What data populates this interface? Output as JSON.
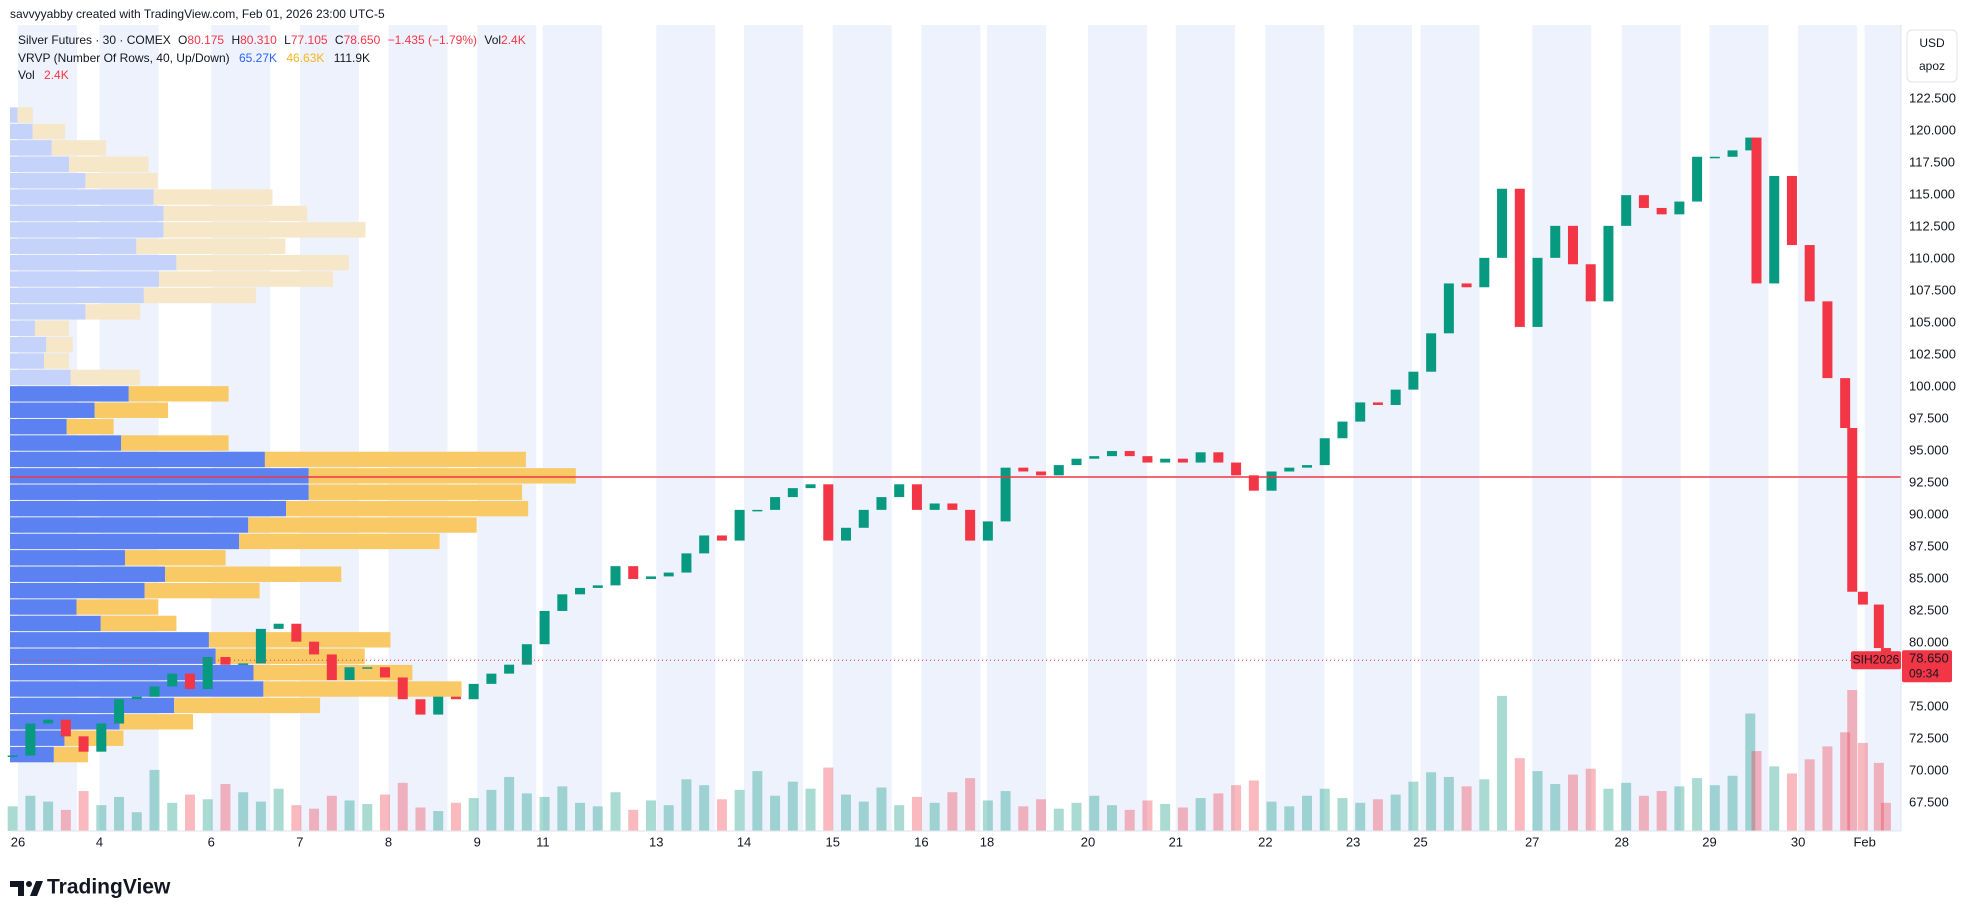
{
  "header": "savvyyabby created with TradingView.com, Feb 01, 2026 23:00 UTC-5",
  "legend": {
    "symbol": "Silver Futures · 30 · COMEX",
    "o_label": "O",
    "open": "80.175",
    "h_label": "H",
    "high": "80.310",
    "l_label": "L",
    "low": "77.105",
    "c_label": "C",
    "close": "78.650",
    "change": "−1.435 (−1.79%)",
    "vol_label": "Vol",
    "vol": "2.4K",
    "vrvp": "VRVP (Number Of Rows, 40, Up/Down)",
    "vrvp_up": "65.27K",
    "vrvp_down": "46.63K",
    "vrvp_total": "111.9K",
    "vol2_label": "Vol",
    "vol2": "2.4K"
  },
  "currency": "USD",
  "scale_mode": "apoz",
  "footer": "TradingView",
  "chart_data": {
    "type": "candlestick",
    "xlim": [
      0,
      21.33
    ],
    "ylim": [
      65.3,
      128.3
    ],
    "xticks": [
      {
        "value": 0.09,
        "label": "26"
      },
      {
        "value": 1.01,
        "label": "4"
      },
      {
        "value": 2.27,
        "label": "6"
      },
      {
        "value": 3.27,
        "label": "7"
      },
      {
        "value": 4.27,
        "label": "8"
      },
      {
        "value": 5.27,
        "label": "9"
      },
      {
        "value": 6.01,
        "label": "11"
      },
      {
        "value": 7.29,
        "label": "13"
      },
      {
        "value": 8.28,
        "label": "14"
      },
      {
        "value": 9.28,
        "label": "15"
      },
      {
        "value": 10.28,
        "label": "16"
      },
      {
        "value": 11.02,
        "label": "18"
      },
      {
        "value": 12.16,
        "label": "20"
      },
      {
        "value": 13.15,
        "label": "21"
      },
      {
        "value": 14.16,
        "label": "22"
      },
      {
        "value": 15.15,
        "label": "23"
      },
      {
        "value": 15.91,
        "label": "25"
      },
      {
        "value": 17.17,
        "label": "27"
      },
      {
        "value": 18.18,
        "label": "28"
      },
      {
        "value": 19.17,
        "label": "29"
      },
      {
        "value": 20.17,
        "label": "30"
      },
      {
        "value": 20.92,
        "label": "Feb"
      }
    ],
    "yticks": [
      {
        "value": 67.5,
        "label": "67.500"
      },
      {
        "value": 70,
        "label": "70.000"
      },
      {
        "value": 72.5,
        "label": "72.500"
      },
      {
        "value": 75,
        "label": "75.000"
      },
      {
        "value": 77.5,
        "label": "77.500"
      },
      {
        "value": 80,
        "label": "80.000"
      },
      {
        "value": 82.5,
        "label": "82.500"
      },
      {
        "value": 85,
        "label": "85.000"
      },
      {
        "value": 87.5,
        "label": "87.500"
      },
      {
        "value": 90,
        "label": "90.000"
      },
      {
        "value": 92.5,
        "label": "92.500"
      },
      {
        "value": 95,
        "label": "95.000"
      },
      {
        "value": 97.5,
        "label": "97.500"
      },
      {
        "value": 100,
        "label": "100.000"
      },
      {
        "value": 102.5,
        "label": "102.500"
      },
      {
        "value": 105,
        "label": "105.000"
      },
      {
        "value": 107.5,
        "label": "107.500"
      },
      {
        "value": 110,
        "label": "110.000"
      },
      {
        "value": 112.5,
        "label": "112.500"
      },
      {
        "value": 115,
        "label": "115.000"
      },
      {
        "value": 117.5,
        "label": "117.500"
      },
      {
        "value": 120,
        "label": "120.000"
      },
      {
        "value": 122.5,
        "label": "122.500"
      }
    ],
    "up_color": "#089981",
    "down_color": "#f23645",
    "x": [
      0.03,
      0.23,
      0.43,
      0.63,
      0.83,
      1.03,
      1.23,
      1.43,
      1.63,
      1.83,
      2.03,
      2.23,
      2.43,
      2.63,
      2.83,
      3.03,
      3.23,
      3.43,
      3.63,
      3.83,
      4.03,
      4.23,
      4.43,
      4.63,
      4.83,
      5.03,
      5.23,
      5.43,
      5.63,
      5.83,
      6.03,
      6.23,
      6.43,
      6.63,
      6.83,
      7.03,
      7.23,
      7.43,
      7.63,
      7.83,
      8.03,
      8.23,
      8.43,
      8.63,
      8.83,
      9.03,
      9.23,
      9.43,
      9.63,
      9.83,
      10.03,
      10.23,
      10.43,
      10.63,
      10.83,
      11.03,
      11.23,
      11.43,
      11.63,
      11.83,
      12.03,
      12.23,
      12.43,
      12.63,
      12.83,
      13.03,
      13.23,
      13.43,
      13.63,
      13.83,
      14.03,
      14.23,
      14.43,
      14.63,
      14.83,
      15.03,
      15.23,
      15.43,
      15.63,
      15.83,
      16.03,
      16.23,
      16.43,
      16.63,
      16.83,
      17.03,
      17.23,
      17.43,
      17.63,
      17.83,
      18.03,
      18.23,
      18.43,
      18.63,
      18.83,
      19.03,
      19.23,
      19.43,
      19.63,
      19.7,
      19.9,
      20.1,
      20.3,
      20.5,
      20.7,
      20.78,
      20.9,
      21.08,
      21.16
    ],
    "series": [
      {
        "name": "Silver Futures",
        "values": [
          71.2,
          73.7,
          74,
          72.7,
          71.5,
          73.7,
          75.6,
          75.8,
          76.6,
          77.6,
          76.4,
          78.9,
          78.3,
          78.4,
          81.1,
          81.5,
          80.1,
          79.1,
          77.1,
          78.1,
          78.1,
          77.3,
          75.6,
          74.4,
          75.8,
          75.6,
          76.8,
          77.6,
          78.3,
          79.9,
          82.5,
          83.8,
          84.3,
          84.5,
          86,
          85,
          85.2,
          85.5,
          87,
          88.4,
          88,
          90.4,
          90.4,
          91.4,
          92.1,
          92.4,
          88,
          89,
          90.4,
          91.4,
          92.4,
          90.4,
          90.9,
          90.4,
          88,
          89.5,
          93.7,
          93.4,
          93.1,
          93.9,
          94.4,
          94.6,
          95.0,
          94.6,
          94.1,
          94.4,
          94.1,
          94.9,
          94.1,
          93.1,
          91.9,
          93.4,
          93.7,
          93.9,
          96.0,
          97.3,
          98.8,
          98.6,
          99.8,
          101.2,
          104.2,
          108.1,
          107.8,
          110.1,
          115.5,
          104.7,
          110.1,
          112.6,
          109.6,
          106.7,
          112.6,
          115,
          114,
          113.5,
          114.5,
          118,
          118,
          118.5,
          119.5,
          108.1,
          116.5,
          111.1,
          106.7,
          100.7,
          96.8,
          84.0,
          83.0,
          79.6,
          78.65
        ]
      },
      {
        "name": "Vol",
        "axis": "volume",
        "values": [
          2.1,
          3.0,
          2.5,
          1.8,
          3.4,
          2.2,
          2.9,
          1.6,
          5.2,
          2.4,
          3.1,
          2.7,
          4.0,
          3.3,
          2.5,
          3.6,
          2.2,
          1.9,
          3.0,
          2.6,
          2.3,
          3.1,
          4.1,
          2.0,
          1.7,
          2.4,
          2.8,
          3.5,
          4.6,
          3.2,
          2.9,
          3.8,
          2.4,
          2.1,
          3.3,
          1.8,
          2.6,
          2.2,
          4.4,
          3.9,
          2.7,
          3.5,
          5.1,
          3.0,
          4.2,
          3.6,
          5.4,
          3.1,
          2.5,
          3.7,
          2.2,
          2.9,
          2.4,
          3.3,
          4.5,
          2.6,
          3.4,
          2.1,
          2.7,
          1.9,
          2.4,
          3.0,
          2.2,
          1.8,
          2.6,
          2.3,
          2.0,
          2.8,
          3.2,
          3.9,
          4.3,
          2.5,
          2.1,
          3.0,
          3.6,
          2.8,
          2.4,
          2.7,
          3.1,
          4.2,
          5.0,
          4.6,
          3.8,
          4.4,
          11.5,
          6.2,
          5.1,
          4.0,
          4.8,
          5.3,
          3.6,
          4.1,
          3.0,
          3.4,
          3.8,
          4.5,
          3.9,
          4.7,
          10.0,
          6.8,
          5.5,
          4.9,
          6.1,
          7.2,
          8.4,
          12.0,
          7.5,
          5.8,
          2.4
        ]
      }
    ],
    "volume_lim": [
      0,
      20
    ],
    "profile": {
      "range": [
        70.63,
        121.9
      ],
      "xlim": [
        0,
        25
      ],
      "value_area": [
        70.63,
        100.16
      ],
      "up_color": "#5b82f0",
      "down_color": "#f8c964",
      "up_faded_color": "#c5d2fa",
      "down_faded_color": "#f5e7c8",
      "up": [
        0.58,
        0.72,
        1.45,
        2.17,
        3.35,
        3.22,
        2.72,
        2.63,
        1.2,
        0.88,
        1.78,
        2.05,
        1.52,
        3.03,
        3.15,
        3.65,
        3.95,
        3.95,
        3.37,
        1.47,
        0.75,
        1.12,
        1.57,
        0.8,
        0.45,
        0.48,
        0.33,
        1.0,
        1.77,
        1.97,
        2.2,
        1.67,
        2.03,
        2.03,
        1.9,
        1.0,
        0.78,
        0.55,
        0.3,
        0.1
      ],
      "down": [
        0.45,
        0.78,
        0.97,
        1.93,
        2.62,
        2.1,
        1.97,
        2.4,
        1.0,
        1.08,
        1.52,
        2.33,
        1.33,
        2.65,
        3.02,
        3.2,
        2.82,
        3.53,
        3.45,
        1.42,
        0.62,
        0.97,
        1.32,
        0.92,
        0.33,
        0.35,
        0.45,
        0.72,
        1.48,
        2.3,
        2.28,
        1.97,
        2.67,
        1.9,
        1.57,
        0.95,
        1.05,
        0.72,
        0.43,
        0.2
      ],
      "poc": 92.97,
      "poc_color": "#f23645"
    },
    "price_tag": {
      "symbol": "SIH2026",
      "value": 78.65,
      "label": "78.650",
      "countdown": "09:34",
      "color": "#f23645"
    }
  }
}
